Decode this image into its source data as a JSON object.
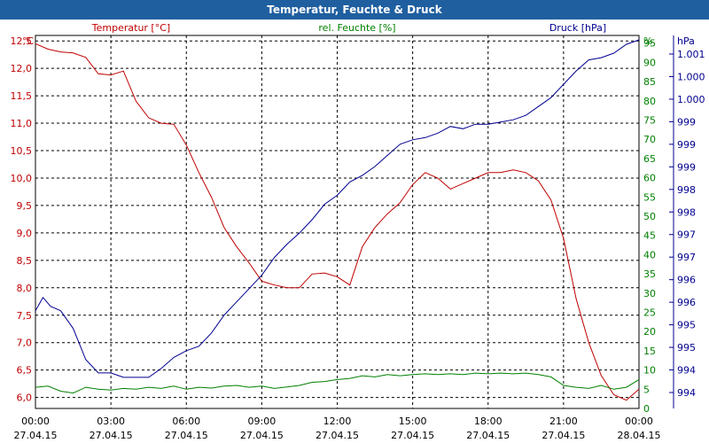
{
  "window_title": "Temperatur, Feuchte & Druck",
  "chart_data": {
    "type": "line",
    "title": "Temperatur, Feuchte & Druck",
    "x_ticks": [
      {
        "time": "00:00",
        "date": "27.04.15"
      },
      {
        "time": "03:00",
        "date": "27.04.15"
      },
      {
        "time": "06:00",
        "date": "27.04.15"
      },
      {
        "time": "09:00",
        "date": "27.04.15"
      },
      {
        "time": "12:00",
        "date": "27.04.15"
      },
      {
        "time": "15:00",
        "date": "27.04.15"
      },
      {
        "time": "18:00",
        "date": "27.04.15"
      },
      {
        "time": "21:00",
        "date": "27.04.15"
      },
      {
        "time": "00:00",
        "date": "28.04.15"
      }
    ],
    "xlim_hours": [
      0,
      24
    ],
    "axes": {
      "temperature": {
        "unit": "°C",
        "label": "Temperatur [°C]",
        "color": "#c00000",
        "ylim": [
          5.8,
          12.6
        ],
        "ticks": [
          "6,0",
          "6,5",
          "7,0",
          "7,5",
          "8,0",
          "8,5",
          "9,0",
          "9,5",
          "10,0",
          "10,5",
          "11,0",
          "11,5",
          "12,0",
          "12,5"
        ]
      },
      "humidity": {
        "unit": "%",
        "label": "rel. Feuchte [%]",
        "color": "#008000",
        "ylim": [
          0,
          97
        ],
        "ticks": [
          "0",
          "5",
          "10",
          "15",
          "20",
          "25",
          "30",
          "35",
          "40",
          "45",
          "50",
          "55",
          "60",
          "65",
          "70",
          "75",
          "80",
          "85",
          "90",
          "95"
        ]
      },
      "pressure": {
        "unit": "hPa",
        "label": "Druck [hPa]",
        "color": "#000090",
        "ylim": [
          993.2,
          1001.6
        ],
        "ticks": [
          "994",
          "994",
          "995",
          "995",
          "996",
          "996",
          "997",
          "997",
          "998",
          "998",
          "999",
          "999",
          "999",
          "1.000",
          "1.000",
          "1.001"
        ]
      }
    },
    "series": [
      {
        "name": "Temperatur [°C]",
        "axis": "temperature",
        "x": [
          0,
          0.5,
          1,
          1.5,
          2,
          2.5,
          3,
          3.5,
          4,
          4.5,
          5,
          5.5,
          6,
          6.5,
          7,
          7.5,
          8,
          8.5,
          9,
          9.5,
          10,
          10.5,
          11,
          11.5,
          12,
          12.5,
          13,
          13.5,
          14,
          14.5,
          15,
          15.5,
          16,
          16.5,
          17,
          17.5,
          18,
          18.5,
          19,
          19.5,
          20,
          20.5,
          21,
          21.5,
          22,
          22.5,
          23,
          23.5,
          24
        ],
        "values": [
          12.45,
          12.35,
          12.3,
          12.28,
          12.2,
          11.9,
          11.88,
          11.95,
          11.4,
          11.1,
          11.0,
          10.98,
          10.6,
          10.1,
          9.65,
          9.1,
          8.75,
          8.45,
          8.12,
          8.05,
          8.0,
          8.0,
          8.25,
          8.27,
          8.2,
          8.05,
          8.75,
          9.1,
          9.35,
          9.55,
          9.88,
          10.1,
          10.0,
          9.8,
          9.9,
          10.0,
          10.1,
          10.1,
          10.15,
          10.1,
          9.95,
          9.6,
          8.9,
          7.8,
          7.0,
          6.4,
          6.05,
          5.95,
          6.15
        ]
      },
      {
        "name": "rel. Feuchte [%]",
        "axis": "humidity",
        "x": [
          0,
          0.5,
          1,
          1.5,
          2,
          2.5,
          3,
          3.5,
          4,
          4.5,
          5,
          5.5,
          6,
          6.5,
          7,
          7.5,
          8,
          8.5,
          9,
          9.5,
          10,
          10.5,
          11,
          11.5,
          12,
          12.5,
          13,
          13.5,
          14,
          14.5,
          15,
          15.5,
          16,
          16.5,
          17,
          17.5,
          18,
          18.5,
          19,
          19.5,
          20,
          20.5,
          21,
          21.5,
          22,
          22.5,
          23,
          23.5,
          24
        ],
        "values": [
          5.5,
          5.8,
          4.5,
          4.0,
          5.5,
          5.0,
          4.8,
          5.2,
          5.0,
          5.5,
          5.2,
          5.8,
          5.0,
          5.5,
          5.3,
          5.8,
          6.0,
          5.5,
          5.8,
          5.2,
          5.6,
          6.0,
          6.8,
          7.0,
          7.5,
          7.8,
          8.5,
          8.2,
          8.8,
          8.5,
          8.8,
          9.0,
          8.8,
          9.0,
          8.8,
          9.2,
          9.0,
          9.2,
          9.0,
          9.2,
          8.8,
          8.2,
          6.0,
          5.5,
          5.2,
          6.0,
          5.0,
          5.5,
          7.5
        ]
      },
      {
        "name": "Druck [hPa]",
        "axis": "pressure",
        "x": [
          0,
          0.3,
          0.6,
          1,
          1.5,
          2,
          2.5,
          3,
          3.5,
          4,
          4.5,
          5,
          5.5,
          6,
          6.5,
          7,
          7.5,
          8,
          8.5,
          9,
          9.5,
          10,
          10.5,
          11,
          11.5,
          12,
          12.5,
          13,
          13.5,
          14,
          14.5,
          15,
          15.5,
          16,
          16.5,
          17,
          17.5,
          18,
          18.5,
          19,
          19.5,
          20,
          20.5,
          21,
          21.5,
          22,
          22.5,
          23,
          23.5,
          24
        ],
        "values": [
          995.4,
          995.7,
          995.5,
          995.4,
          995.0,
          994.3,
          994.0,
          994.0,
          993.9,
          993.9,
          993.9,
          994.1,
          994.35,
          994.5,
          994.6,
          994.9,
          995.3,
          995.6,
          995.9,
          996.2,
          996.6,
          996.9,
          997.15,
          997.45,
          997.8,
          998.0,
          998.3,
          998.45,
          998.65,
          998.9,
          999.15,
          999.25,
          999.3,
          999.4,
          999.55,
          999.5,
          999.6,
          999.6,
          999.65,
          999.7,
          999.8,
          1000.0,
          1000.2,
          1000.5,
          1000.8,
          1001.05,
          1001.1,
          1001.2,
          1001.4,
          1001.5
        ]
      }
    ]
  }
}
